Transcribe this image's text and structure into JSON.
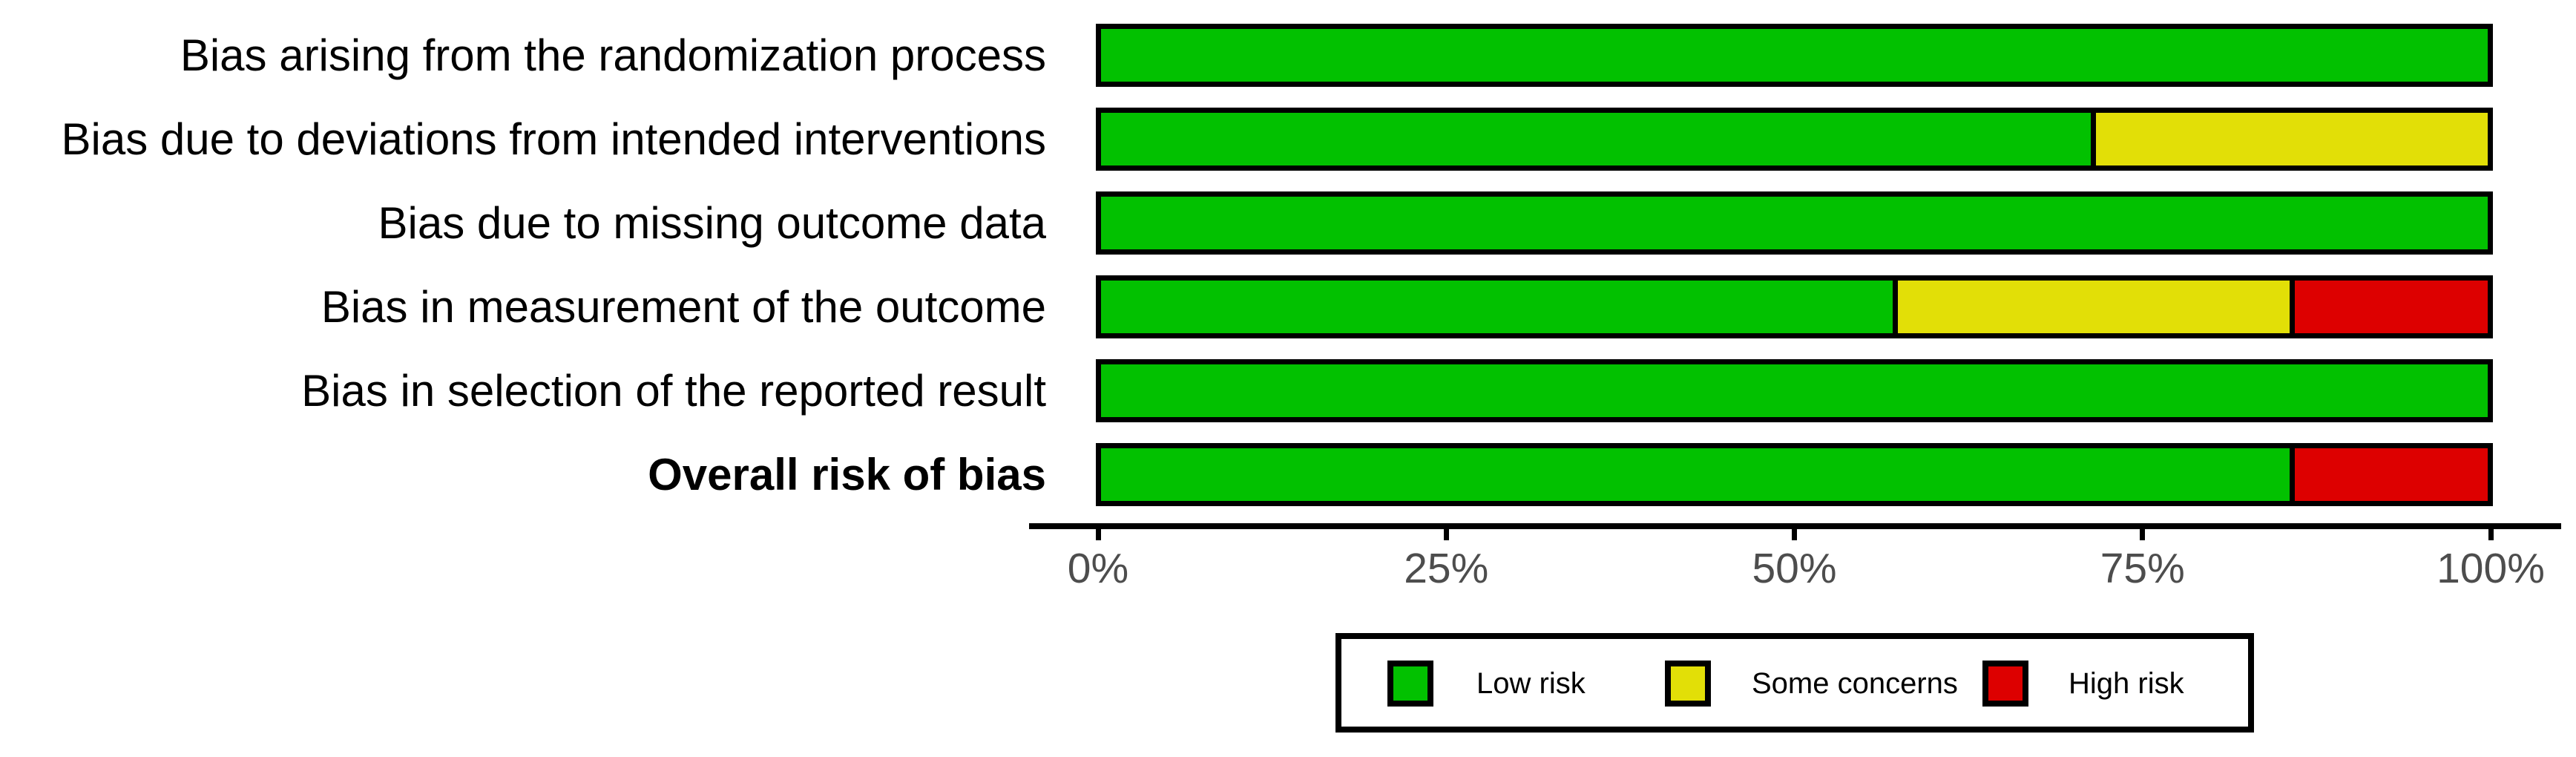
{
  "colors": {
    "low": "#02C100",
    "some_concerns": "#E2DF07",
    "high": "#DD0000",
    "axis": "#000000",
    "tick_text": "#4D4D4D"
  },
  "chart_data": {
    "type": "bar",
    "orientation": "horizontal-stacked-percentage",
    "title": "",
    "xlabel": "",
    "ylabel": "",
    "xlim": [
      0,
      100
    ],
    "grid": false,
    "categories": [
      "Bias arising from the randomization process",
      "Bias due to deviations from intended interventions",
      "Bias due to missing outcome data",
      "Bias in measurement of the outcome",
      "Bias in selection of the reported result",
      "Overall risk of bias"
    ],
    "bold_categories": [
      "Overall risk of bias"
    ],
    "series": [
      {
        "name": "Low risk",
        "key": "low",
        "values": [
          100,
          71.4,
          100,
          57.1,
          100,
          85.7
        ]
      },
      {
        "name": "Some concerns",
        "key": "some_concerns",
        "values": [
          0,
          28.6,
          0,
          28.6,
          0,
          0
        ]
      },
      {
        "name": "High risk",
        "key": "high",
        "values": [
          0,
          0,
          0,
          14.3,
          0,
          14.3
        ]
      }
    ],
    "x_tick_labels": [
      "0%",
      "25%",
      "50%",
      "75%",
      "100%"
    ],
    "x_tick_values": [
      0,
      25,
      50,
      75,
      100
    ],
    "legend": {
      "position": "bottom",
      "entries": [
        {
          "label": "Low risk",
          "key": "low"
        },
        {
          "label": "Some concerns",
          "key": "some_concerns"
        },
        {
          "label": "High risk",
          "key": "high"
        }
      ]
    }
  }
}
